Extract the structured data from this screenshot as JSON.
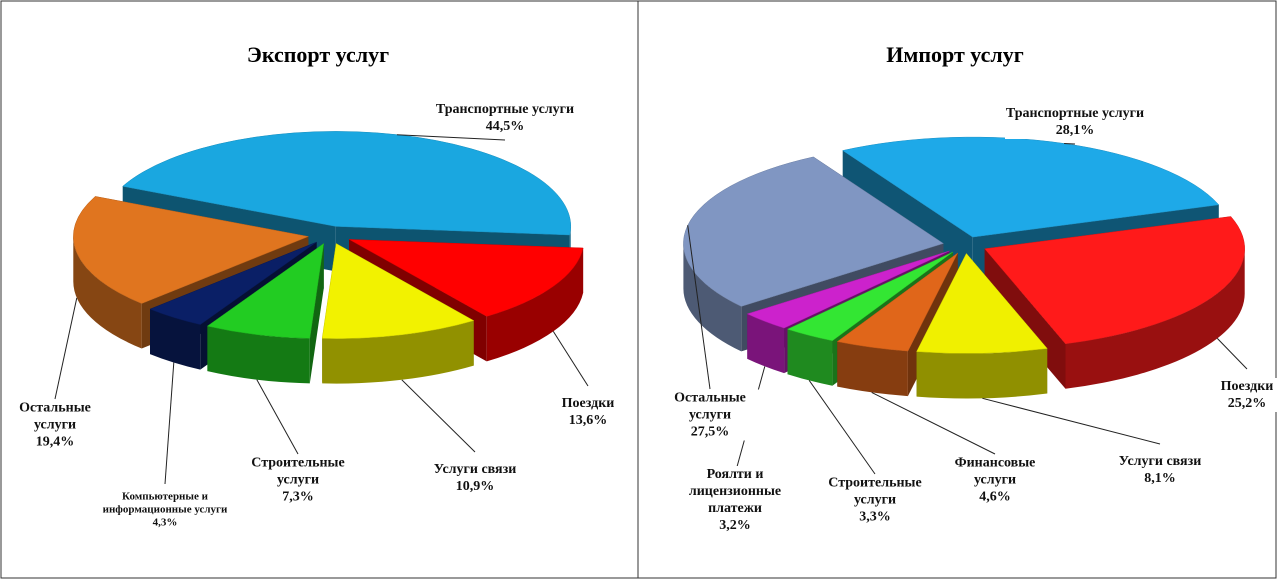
{
  "chart_data": [
    {
      "type": "pie",
      "title": "Экспорт услуг",
      "categories": [
        "Транспортные услуги",
        "Поездки",
        "Услуги связи",
        "Строительные услуги",
        "Компьютерные и информационные услуги",
        "Остальные услуги"
      ],
      "values": [
        44.5,
        13.6,
        10.9,
        7.3,
        4.3,
        19.4
      ],
      "value_labels": [
        "44,5%",
        "13,6%",
        "10,9%",
        "7,3%",
        "4,3%",
        "19,4%"
      ],
      "colors": [
        "#1aa7e0",
        "#ff0000",
        "#f2f200",
        "#22cc22",
        "#0a1f66",
        "#e0751f"
      ]
    },
    {
      "type": "pie",
      "title": "Импорт услуг",
      "categories": [
        "Транспортные услуги",
        "Поездки",
        "Услуги связи",
        "Финансовые услуги",
        "Строительные услуги",
        "Роялти и лицензионные платежи",
        "Остальные услуги"
      ],
      "values": [
        28.1,
        25.2,
        8.1,
        4.6,
        3.3,
        3.2,
        27.5
      ],
      "value_labels": [
        "28,1%",
        "25,2%",
        "8,1%",
        "4,6%",
        "3,3%",
        "3,2%",
        "27,5%"
      ],
      "colors": [
        "#1ea9e8",
        "#ff1a1a",
        "#f0f000",
        "#e0661a",
        "#33e633",
        "#cc22cc",
        "#8096c2"
      ]
    }
  ]
}
